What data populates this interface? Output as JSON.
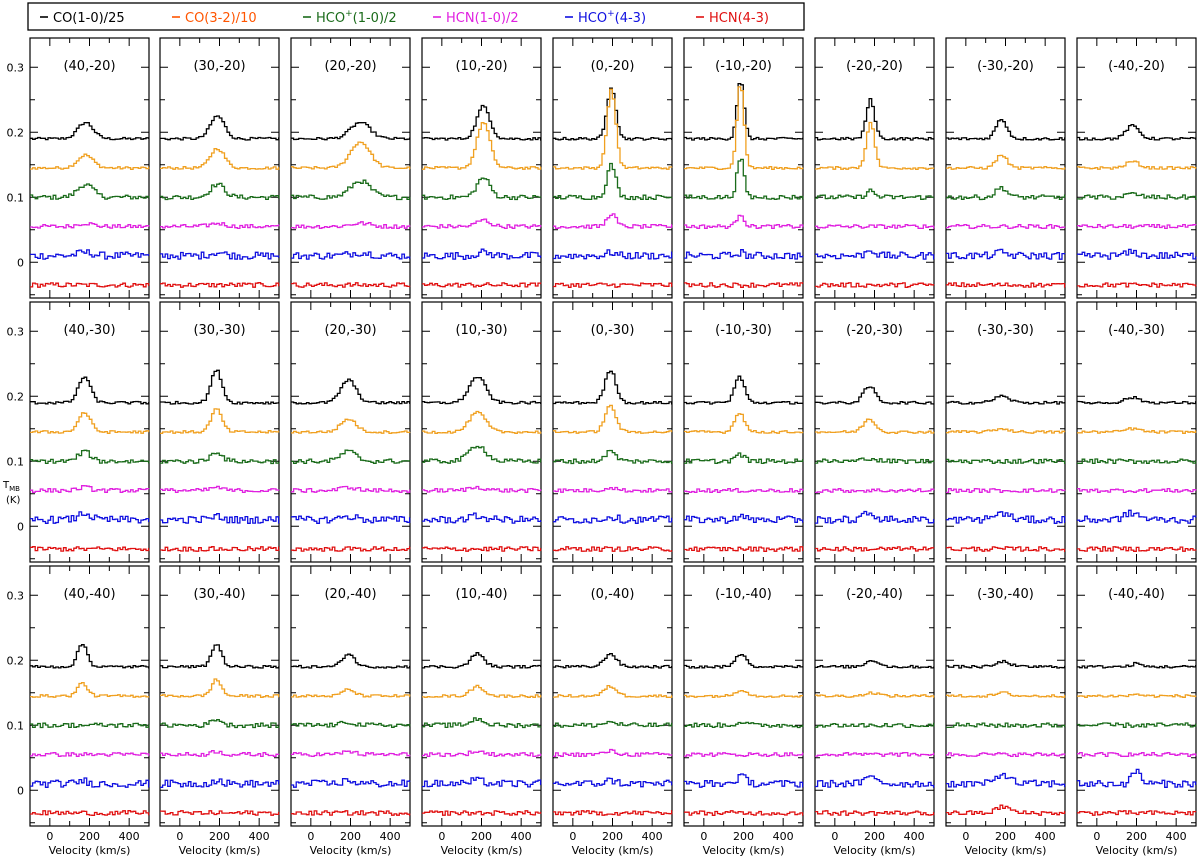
{
  "chart_data": {
    "type": "line",
    "layout": "small-multiples grid of spectra, 3 rows x 9 columns",
    "ylabel_html": "T<sub>MB</sub> (K)",
    "ylabel_line1": "T",
    "ylabel_sub": "MB",
    "ylabel_line2": "(K)",
    "xlabel": "Velocity (km/s)",
    "xlim": [
      -100,
      500
    ],
    "xticks": [
      0,
      200,
      400
    ],
    "xtick_labels": [
      "0",
      "200",
      "400"
    ],
    "ylim": [
      -0.055,
      0.345
    ],
    "yticks": [
      0,
      0.1,
      0.2,
      0.3
    ],
    "ytick_labels": [
      "0",
      "0.1",
      "0.2",
      "0.3"
    ],
    "legend_position": "top",
    "series": [
      {
        "name": "CO(1-0)/25",
        "label_main": "CO(1-0)/25",
        "sup": "",
        "pre": "",
        "color": "#000000",
        "offset": 0.19
      },
      {
        "name": "CO(3-2)/10",
        "label_main": "CO(3-2)/10",
        "sup": "",
        "pre": "",
        "color": "#f0a020",
        "offset": 0.145
      },
      {
        "name": "HCO+(1-0)/2",
        "label_main": "(1-0)/2",
        "sup": "+",
        "pre": "HCO",
        "color": "#1a6b1a",
        "offset": 0.1
      },
      {
        "name": "HCN(1-0)/2",
        "label_main": "HCN(1-0)/2",
        "sup": "",
        "pre": "",
        "color": "#e020e0",
        "offset": 0.055
      },
      {
        "name": "HCO+(4-3)",
        "label_main": "(4-3)",
        "sup": "+",
        "pre": "HCO",
        "color": "#1010e0",
        "offset": 0.01
      },
      {
        "name": "HCN(4-3)",
        "label_main": "HCN(4-3)",
        "sup": "",
        "pre": "",
        "color": "#e01010",
        "offset": -0.035
      }
    ],
    "legend_label_colors": [
      "#000000",
      "#ff5500",
      "#1a6b1a",
      "#e020e0",
      "#1010e0",
      "#e01010"
    ],
    "panels": [
      {
        "label": "(40,-20)",
        "v0": 180,
        "w": 70,
        "amps": [
          0.025,
          0.02,
          0.02,
          0.005,
          0.005,
          0.0
        ]
      },
      {
        "label": "(30,-20)",
        "v0": 190,
        "w": 65,
        "amps": [
          0.035,
          0.03,
          0.02,
          0.005,
          0.005,
          0.0
        ]
      },
      {
        "label": "(20,-20)",
        "v0": 250,
        "w": 90,
        "amps": [
          0.025,
          0.04,
          0.025,
          0.005,
          0.005,
          0.0
        ]
      },
      {
        "label": "(10,-20)",
        "v0": 210,
        "w": 60,
        "amps": [
          0.05,
          0.07,
          0.03,
          0.01,
          0.005,
          0.0
        ]
      },
      {
        "label": "(0,-20)",
        "v0": 195,
        "w": 40,
        "amps": [
          0.08,
          0.12,
          0.05,
          0.02,
          0.005,
          0.0
        ]
      },
      {
        "label": "(-10,-20)",
        "v0": 185,
        "w": 32,
        "amps": [
          0.09,
          0.13,
          0.06,
          0.02,
          0.005,
          0.0
        ]
      },
      {
        "label": "(-20,-20)",
        "v0": 180,
        "w": 38,
        "amps": [
          0.06,
          0.07,
          0.01,
          0.0,
          0.01,
          0.0
        ]
      },
      {
        "label": "(-30,-20)",
        "v0": 180,
        "w": 50,
        "amps": [
          0.03,
          0.02,
          0.015,
          0.0,
          0.005,
          0.0
        ]
      },
      {
        "label": "(-40,-20)",
        "v0": 180,
        "w": 60,
        "amps": [
          0.02,
          0.01,
          0.005,
          0.0,
          0.005,
          0.0
        ]
      },
      {
        "label": "(40,-30)",
        "v0": 175,
        "w": 55,
        "amps": [
          0.04,
          0.03,
          0.015,
          0.005,
          0.01,
          0.0
        ]
      },
      {
        "label": "(30,-30)",
        "v0": 185,
        "w": 50,
        "amps": [
          0.05,
          0.035,
          0.015,
          0.005,
          0.005,
          0.0
        ]
      },
      {
        "label": "(20,-30)",
        "v0": 190,
        "w": 70,
        "amps": [
          0.035,
          0.02,
          0.015,
          0.005,
          0.005,
          0.0
        ]
      },
      {
        "label": "(10,-30)",
        "v0": 180,
        "w": 75,
        "amps": [
          0.04,
          0.03,
          0.025,
          0.005,
          0.005,
          0.0
        ]
      },
      {
        "label": "(0,-30)",
        "v0": 190,
        "w": 50,
        "amps": [
          0.05,
          0.04,
          0.015,
          0.005,
          0.005,
          0.0
        ]
      },
      {
        "label": "(-10,-30)",
        "v0": 180,
        "w": 45,
        "amps": [
          0.04,
          0.03,
          0.01,
          0.0,
          0.005,
          0.0
        ]
      },
      {
        "label": "(-20,-30)",
        "v0": 175,
        "w": 55,
        "amps": [
          0.025,
          0.02,
          0.005,
          0.0,
          0.01,
          0.0
        ]
      },
      {
        "label": "(-30,-30)",
        "v0": 180,
        "w": 70,
        "amps": [
          0.01,
          0.005,
          0.0,
          0.0,
          0.01,
          0.0
        ]
      },
      {
        "label": "(-40,-30)",
        "v0": 180,
        "w": 70,
        "amps": [
          0.008,
          0.005,
          0.0,
          0.0,
          0.01,
          0.0
        ]
      },
      {
        "label": "(40,-40)",
        "v0": 165,
        "w": 45,
        "amps": [
          0.035,
          0.02,
          0.0,
          0.0,
          0.005,
          0.0
        ]
      },
      {
        "label": "(30,-40)",
        "v0": 185,
        "w": 45,
        "amps": [
          0.035,
          0.025,
          0.01,
          0.005,
          0.005,
          0.0
        ]
      },
      {
        "label": "(20,-40)",
        "v0": 190,
        "w": 55,
        "amps": [
          0.02,
          0.01,
          0.005,
          0.005,
          0.005,
          0.0
        ]
      },
      {
        "label": "(10,-40)",
        "v0": 180,
        "w": 60,
        "amps": [
          0.02,
          0.015,
          0.01,
          0.005,
          0.005,
          0.0
        ]
      },
      {
        "label": "(0,-40)",
        "v0": 190,
        "w": 55,
        "amps": [
          0.02,
          0.015,
          0.005,
          0.005,
          0.005,
          0.0
        ]
      },
      {
        "label": "(-10,-40)",
        "v0": 190,
        "w": 50,
        "amps": [
          0.02,
          0.01,
          0.005,
          0.0,
          0.01,
          0.0
        ]
      },
      {
        "label": "(-20,-40)",
        "v0": 190,
        "w": 60,
        "amps": [
          0.01,
          0.005,
          0.0,
          0.0,
          0.01,
          0.0
        ]
      },
      {
        "label": "(-30,-40)",
        "v0": 190,
        "w": 60,
        "amps": [
          0.008,
          0.005,
          0.0,
          0.0,
          0.015,
          0.01
        ]
      },
      {
        "label": "(-40,-40)",
        "v0": 200,
        "w": 40,
        "amps": [
          0.005,
          0.003,
          0.0,
          0.0,
          0.02,
          0.0
        ]
      }
    ]
  }
}
